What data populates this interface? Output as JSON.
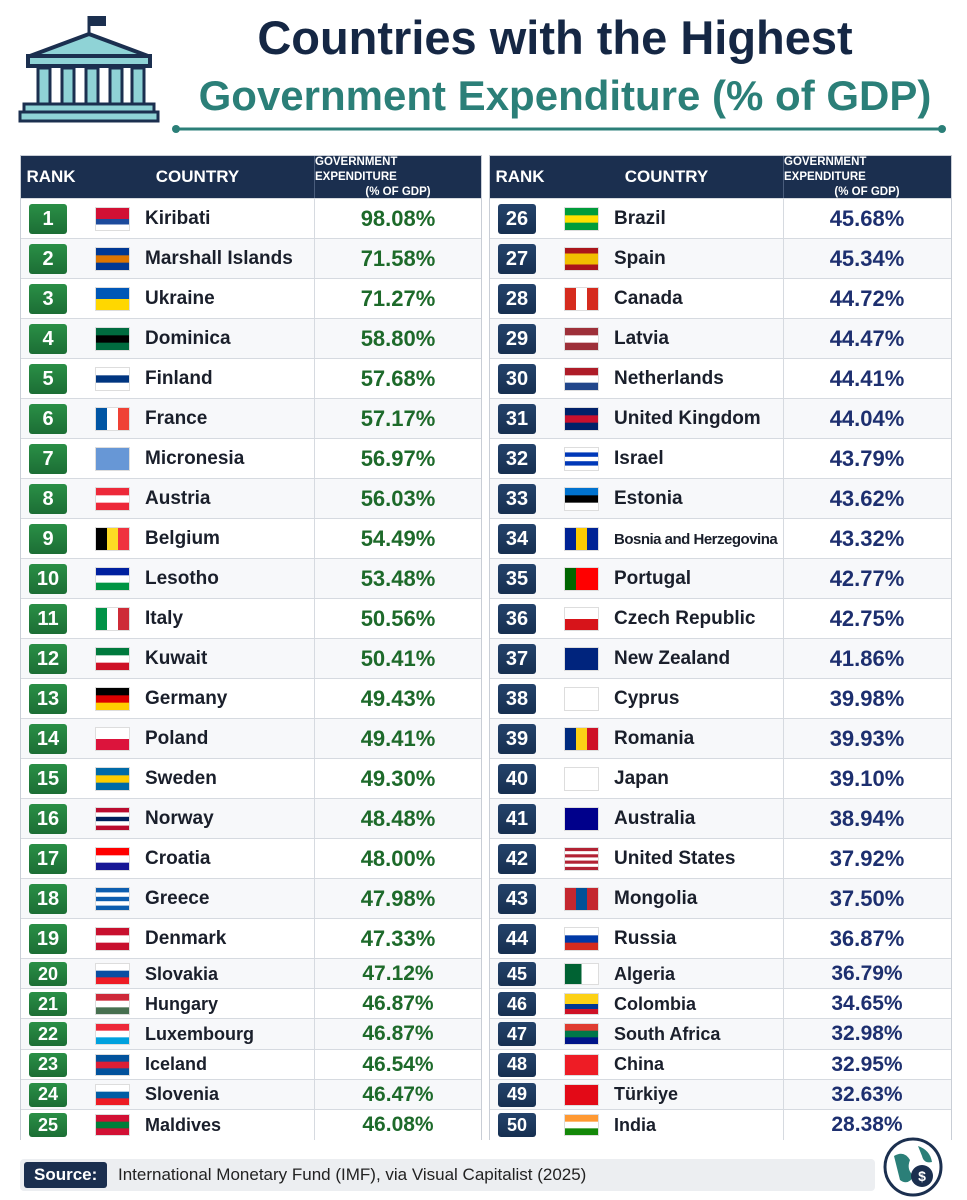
{
  "header": {
    "title_line1": "Countries with the Highest",
    "title_line2": "Government Expenditure (% of GDP)"
  },
  "tables": [
    {
      "columns": [
        "RANK",
        "COUNTRY",
        "GOVERNMENT EXPENDITURE",
        "(% OF GDP)"
      ],
      "rows": [
        [
          "1",
          "Kiribati",
          "98.08%"
        ],
        [
          "2",
          "Marshall Islands",
          "71.58%"
        ],
        [
          "3",
          "Ukraine",
          "71.27%"
        ],
        [
          "4",
          "Dominica",
          "58.80%"
        ],
        [
          "5",
          "Finland",
          "57.68%"
        ],
        [
          "6",
          "France",
          "57.17%"
        ],
        [
          "7",
          "Micronesia",
          "56.97%"
        ],
        [
          "8",
          "Austria",
          "56.03%"
        ],
        [
          "9",
          "Belgium",
          "54.49%"
        ],
        [
          "10",
          "Lesotho",
          "53.48%"
        ],
        [
          "11",
          "Italy",
          "50.56%"
        ],
        [
          "12",
          "Kuwait",
          "50.41%"
        ],
        [
          "13",
          "Germany",
          "49.43%"
        ],
        [
          "14",
          "Poland",
          "49.41%"
        ],
        [
          "15",
          "Sweden",
          "49.30%"
        ],
        [
          "16",
          "Norway",
          "48.48%"
        ],
        [
          "17",
          "Croatia",
          "48.00%"
        ],
        [
          "18",
          "Greece",
          "47.98%"
        ],
        [
          "19",
          "Denmark",
          "47.33%"
        ],
        [
          "20",
          "Slovakia",
          "47.12%"
        ],
        [
          "21",
          "Hungary",
          "46.87%"
        ],
        [
          "22",
          "Luxembourg",
          "46.87%"
        ],
        [
          "23",
          "Iceland",
          "46.54%"
        ],
        [
          "24",
          "Slovenia",
          "46.47%"
        ],
        [
          "25",
          "Maldives",
          "46.08%"
        ]
      ]
    },
    {
      "columns": [
        "RANK",
        "COUNTRY",
        "GOVERNMENT EXPENDITURE",
        "(% OF GDP)"
      ],
      "rows": [
        [
          "26",
          "Brazil",
          "45.68%"
        ],
        [
          "27",
          "Spain",
          "45.34%"
        ],
        [
          "28",
          "Canada",
          "44.72%"
        ],
        [
          "29",
          "Latvia",
          "44.47%"
        ],
        [
          "30",
          "Netherlands",
          "44.41%"
        ],
        [
          "31",
          "United Kingdom",
          "44.04%"
        ],
        [
          "32",
          "Israel",
          "43.79%"
        ],
        [
          "33",
          "Estonia",
          "43.62%"
        ],
        [
          "34",
          "Bosnia and Herzegovina",
          "43.32%"
        ],
        [
          "35",
          "Portugal",
          "42.77%"
        ],
        [
          "36",
          "Czech Republic",
          "42.75%"
        ],
        [
          "37",
          "New Zealand",
          "41.86%"
        ],
        [
          "38",
          "Cyprus",
          "39.98%"
        ],
        [
          "39",
          "Romania",
          "39.93%"
        ],
        [
          "40",
          "Japan",
          "39.10%"
        ],
        [
          "41",
          "Australia",
          "38.94%"
        ],
        [
          "42",
          "United States",
          "37.92%"
        ],
        [
          "43",
          "Mongolia",
          "37.50%"
        ],
        [
          "44",
          "Russia",
          "36.87%"
        ],
        [
          "45",
          "Algeria",
          "36.79%"
        ],
        [
          "46",
          "Colombia",
          "34.65%"
        ],
        [
          "47",
          "South Africa",
          "32.98%"
        ],
        [
          "48",
          "China",
          "32.95%"
        ],
        [
          "49",
          "Türkiye",
          "32.63%"
        ],
        [
          "50",
          "India",
          "28.38%"
        ]
      ]
    }
  ],
  "source": {
    "label": "Source:",
    "text": "International Monetary Fund (IMF), via Visual Capitalist (2025)"
  }
}
